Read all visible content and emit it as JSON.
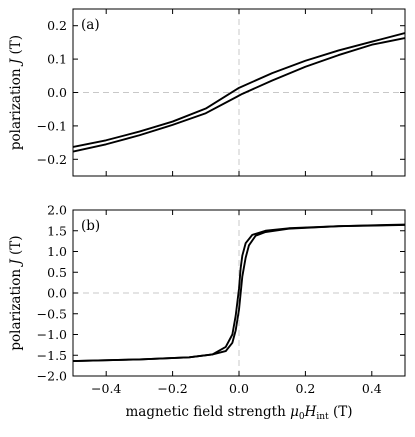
{
  "chart_data": [
    {
      "type": "line",
      "panel_label": "(a)",
      "ylabel": "polarization J (T)",
      "xlabel": "",
      "xlim": [
        -0.5,
        0.5
      ],
      "ylim": [
        -0.25,
        0.25
      ],
      "xticks": [
        -0.4,
        -0.2,
        0.0,
        0.2,
        0.4
      ],
      "yticks": [
        -0.2,
        -0.1,
        0.0,
        0.1,
        0.2
      ],
      "ytick_labels": [
        "−0.2",
        "−0.1",
        "0.0",
        "0.1",
        "0.2"
      ],
      "xtick_labels_shown": false,
      "reference_lines": {
        "x": 0,
        "y": 0,
        "color": "#c8c8c8",
        "style": "dashed"
      },
      "grid": false,
      "legend": "none",
      "line_color": "#000000",
      "series": [
        {
          "x": [
            -0.5,
            -0.4,
            -0.3,
            -0.2,
            -0.1,
            0.0,
            0.1,
            0.2,
            0.3,
            0.4,
            0.5
          ],
          "y": [
            -0.163,
            -0.143,
            -0.117,
            -0.087,
            -0.048,
            0.014,
            0.058,
            0.095,
            0.126,
            0.152,
            0.178
          ]
        },
        {
          "x": [
            -0.5,
            -0.4,
            -0.3,
            -0.2,
            -0.1,
            -0.005,
            0.01,
            0.1,
            0.2,
            0.3,
            0.4,
            0.5
          ],
          "y": [
            -0.177,
            -0.155,
            -0.128,
            -0.097,
            -0.062,
            -0.012,
            -0.004,
            0.036,
            0.077,
            0.112,
            0.143,
            0.163
          ]
        }
      ]
    },
    {
      "type": "line",
      "panel_label": "(b)",
      "ylabel": "polarization J (T)",
      "xlabel": "magnetic field strength μ0Hint (T)",
      "xlim": [
        -0.5,
        0.5
      ],
      "ylim": [
        -2.0,
        2.0
      ],
      "xticks": [
        -0.4,
        -0.2,
        0.0,
        0.2,
        0.4
      ],
      "xtick_labels": [
        "−0.4",
        "−0.2",
        "0.0",
        "0.2",
        "0.4"
      ],
      "yticks": [
        -2.0,
        -1.5,
        -1.0,
        -0.5,
        0.0,
        0.5,
        1.0,
        1.5,
        2.0
      ],
      "ytick_labels": [
        "−2.0",
        "−1.5",
        "−1.0",
        "−0.5",
        "0.0",
        "0.5",
        "1.0",
        "1.5",
        "2.0"
      ],
      "reference_lines": {
        "x": 0,
        "y": 0,
        "color": "#c8c8c8",
        "style": "dashed"
      },
      "grid": false,
      "legend": "none",
      "line_color": "#000000",
      "series": [
        {
          "x": [
            -0.5,
            -0.3,
            -0.15,
            -0.08,
            -0.04,
            -0.02,
            -0.01,
            0.0,
            0.005,
            0.01,
            0.02,
            0.04,
            0.08,
            0.15,
            0.3,
            0.5
          ],
          "y": [
            -1.64,
            -1.6,
            -1.55,
            -1.48,
            -1.3,
            -1.0,
            -0.55,
            0.1,
            0.6,
            0.9,
            1.2,
            1.4,
            1.5,
            1.56,
            1.61,
            1.64
          ]
        },
        {
          "x": [
            -0.5,
            -0.3,
            -0.15,
            -0.08,
            -0.04,
            -0.02,
            -0.01,
            0.0,
            0.005,
            0.01,
            0.02,
            0.03,
            0.05,
            0.08,
            0.15,
            0.3,
            0.5
          ],
          "y": [
            -1.64,
            -1.6,
            -1.55,
            -1.48,
            -1.4,
            -1.2,
            -0.9,
            -0.4,
            0.0,
            0.4,
            0.85,
            1.15,
            1.38,
            1.47,
            1.55,
            1.61,
            1.65
          ]
        }
      ]
    }
  ]
}
